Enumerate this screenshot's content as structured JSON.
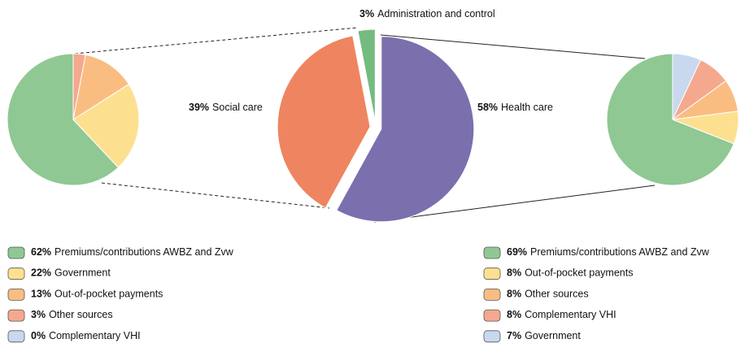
{
  "chart_data": [
    {
      "type": "pie",
      "categories": [
        "Premiums/contributions AWBZ and Zvw",
        "Government",
        "Out-of-pocket payments",
        "Other sources",
        "Complementary VHI"
      ],
      "values": [
        62,
        22,
        13,
        3,
        0
      ],
      "value_labels": [
        "62%",
        "22%",
        "13%",
        "3%",
        "0%"
      ],
      "colors": [
        "#8fc893",
        "#fde08f",
        "#f9bd82",
        "#f4a98e",
        "#c8d9ef"
      ]
    },
    {
      "type": "pie",
      "categories": [
        "Health care",
        "Social care",
        "Administration and control"
      ],
      "values": [
        58,
        39,
        3
      ],
      "value_labels": [
        "58%",
        "39%",
        "3%"
      ],
      "colors": [
        "#7b6fae",
        "#ef8461",
        "#74bb80"
      ]
    },
    {
      "type": "pie",
      "categories": [
        "Premiums/contributions AWBZ and Zvw",
        "Out-of-pocket payments",
        "Other sources",
        "Complementary VHI",
        "Government"
      ],
      "values": [
        69,
        8,
        8,
        8,
        7
      ],
      "value_labels": [
        "69%",
        "8%",
        "8%",
        "8%",
        "7%"
      ],
      "colors": [
        "#8fc893",
        "#fde08f",
        "#f9bd82",
        "#f4a98e",
        "#c8d9ef"
      ]
    }
  ]
}
